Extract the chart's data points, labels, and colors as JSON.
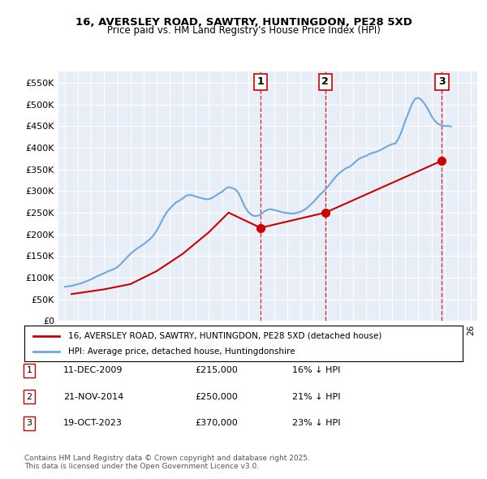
{
  "title": "16, AVERSLEY ROAD, SAWTRY, HUNTINGDON, PE28 5XD",
  "subtitle": "Price paid vs. HM Land Registry's House Price Index (HPI)",
  "background_color": "#ffffff",
  "plot_bg_color": "#e8eef8",
  "grid_color": "#ffffff",
  "ylim": [
    0,
    575000
  ],
  "yticks": [
    0,
    50000,
    100000,
    150000,
    200000,
    250000,
    300000,
    350000,
    400000,
    450000,
    500000,
    550000
  ],
  "ytick_labels": [
    "£0",
    "£50K",
    "£100K",
    "£150K",
    "£200K",
    "£250K",
    "£300K",
    "£350K",
    "£400K",
    "£450K",
    "£500K",
    "£550K"
  ],
  "hpi_color": "#6fa8dc",
  "price_color": "#cc0000",
  "sale_marker_color": "#cc0000",
  "vline_color": "#cc0000",
  "legend_label_price": "16, AVERSLEY ROAD, SAWTRY, HUNTINGDON, PE28 5XD (detached house)",
  "legend_label_hpi": "HPI: Average price, detached house, Huntingdonshire",
  "sale1_date_num": 2009.94,
  "sale1_price": 215000,
  "sale1_label": "1",
  "sale2_date_num": 2014.89,
  "sale2_price": 250000,
  "sale2_label": "2",
  "sale3_date_num": 2023.8,
  "sale3_price": 370000,
  "sale3_label": "3",
  "table_rows": [
    [
      "1",
      "11-DEC-2009",
      "£215,000",
      "16% ↓ HPI"
    ],
    [
      "2",
      "21-NOV-2014",
      "£250,000",
      "21% ↓ HPI"
    ],
    [
      "3",
      "19-OCT-2023",
      "£370,000",
      "23% ↓ HPI"
    ]
  ],
  "footer": "Contains HM Land Registry data © Crown copyright and database right 2025.\nThis data is licensed under the Open Government Licence v3.0.",
  "hpi_dates": [
    1995.0,
    1995.25,
    1995.5,
    1995.75,
    1996.0,
    1996.25,
    1996.5,
    1996.75,
    1997.0,
    1997.25,
    1997.5,
    1997.75,
    1998.0,
    1998.25,
    1998.5,
    1998.75,
    1999.0,
    1999.25,
    1999.5,
    1999.75,
    2000.0,
    2000.25,
    2000.5,
    2000.75,
    2001.0,
    2001.25,
    2001.5,
    2001.75,
    2002.0,
    2002.25,
    2002.5,
    2002.75,
    2003.0,
    2003.25,
    2003.5,
    2003.75,
    2004.0,
    2004.25,
    2004.5,
    2004.75,
    2005.0,
    2005.25,
    2005.5,
    2005.75,
    2006.0,
    2006.25,
    2006.5,
    2006.75,
    2007.0,
    2007.25,
    2007.5,
    2007.75,
    2008.0,
    2008.25,
    2008.5,
    2008.75,
    2009.0,
    2009.25,
    2009.5,
    2009.75,
    2010.0,
    2010.25,
    2010.5,
    2010.75,
    2011.0,
    2011.25,
    2011.5,
    2011.75,
    2012.0,
    2012.25,
    2012.5,
    2012.75,
    2013.0,
    2013.25,
    2013.5,
    2013.75,
    2014.0,
    2014.25,
    2014.5,
    2014.75,
    2015.0,
    2015.25,
    2015.5,
    2015.75,
    2016.0,
    2016.25,
    2016.5,
    2016.75,
    2017.0,
    2017.25,
    2017.5,
    2017.75,
    2018.0,
    2018.25,
    2018.5,
    2018.75,
    2019.0,
    2019.25,
    2019.5,
    2019.75,
    2020.0,
    2020.25,
    2020.5,
    2020.75,
    2021.0,
    2021.25,
    2021.5,
    2021.75,
    2022.0,
    2022.25,
    2022.5,
    2022.75,
    2023.0,
    2023.25,
    2023.5,
    2023.75,
    2024.0,
    2024.25,
    2024.5
  ],
  "hpi_values": [
    79000,
    80000,
    81000,
    83000,
    85000,
    87000,
    90000,
    93000,
    96000,
    100000,
    104000,
    107000,
    110000,
    114000,
    117000,
    120000,
    124000,
    131000,
    139000,
    147000,
    155000,
    161000,
    167000,
    172000,
    177000,
    183000,
    189000,
    197000,
    208000,
    222000,
    237000,
    250000,
    259000,
    267000,
    274000,
    278000,
    283000,
    289000,
    291000,
    290000,
    287000,
    285000,
    283000,
    281000,
    281000,
    284000,
    289000,
    294000,
    298000,
    305000,
    309000,
    307000,
    304000,
    296000,
    280000,
    263000,
    252000,
    245000,
    242000,
    243000,
    247000,
    253000,
    257000,
    258000,
    256000,
    254000,
    252000,
    250000,
    249000,
    248000,
    248000,
    250000,
    252000,
    256000,
    261000,
    268000,
    275000,
    284000,
    292000,
    299000,
    307000,
    316000,
    326000,
    335000,
    342000,
    348000,
    353000,
    356000,
    362000,
    369000,
    375000,
    378000,
    381000,
    385000,
    388000,
    390000,
    393000,
    397000,
    401000,
    405000,
    408000,
    410000,
    422000,
    440000,
    462000,
    481000,
    500000,
    513000,
    515000,
    510000,
    500000,
    488000,
    473000,
    462000,
    455000,
    452000,
    450000,
    450000,
    449000
  ],
  "price_dates": [
    1995.5,
    1998.0,
    2000.0,
    2002.0,
    2004.0,
    2006.0,
    2007.5,
    2009.94,
    2014.89,
    2023.8
  ],
  "price_values": [
    62000,
    73000,
    85000,
    115000,
    155000,
    205000,
    250000,
    215000,
    250000,
    370000
  ],
  "xlim_left": 1994.5,
  "xlim_right": 2026.5
}
